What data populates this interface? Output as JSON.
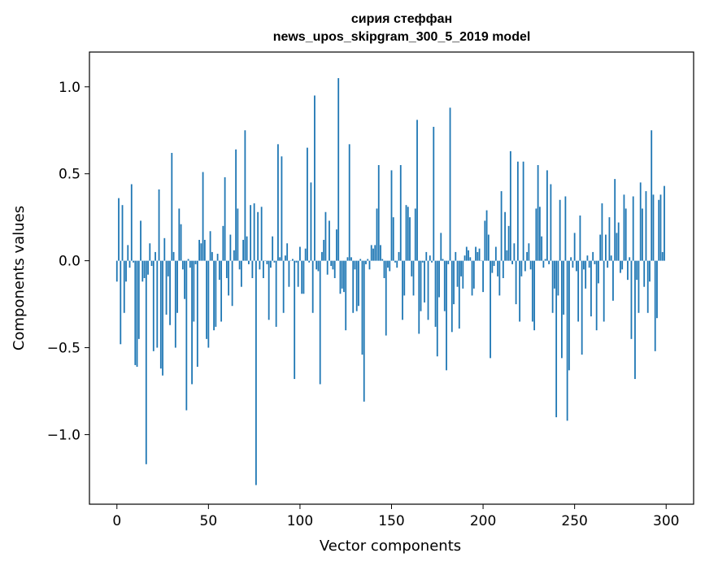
{
  "chart_data": {
    "type": "bar",
    "title": "сирия стеффан",
    "subtitle": "news_upos_skipgram_300_5_2019 model",
    "xlabel": "Vector components",
    "ylabel": "Components values",
    "xlim": [
      -15,
      315
    ],
    "ylim": [
      -1.4,
      1.2
    ],
    "xticks": [
      0,
      50,
      100,
      150,
      200,
      250,
      300
    ],
    "yticks": [
      -1.0,
      -0.5,
      0.0,
      0.5,
      1.0
    ],
    "xtick_labels": [
      "0",
      "50",
      "100",
      "150",
      "200",
      "250",
      "300"
    ],
    "ytick_labels": [
      "−1.0",
      "−0.5",
      "0.0",
      "0.5",
      "1.0"
    ],
    "grid": false,
    "bar_color": "#1f77b4",
    "series": [
      {
        "values": [
          -0.12,
          0.36,
          -0.48,
          0.32,
          -0.3,
          -0.12,
          0.09,
          -0.04,
          0.44,
          -0.01,
          -0.6,
          -0.61,
          -0.45,
          0.23,
          -0.12,
          -0.1,
          -1.17,
          -0.08,
          0.1,
          -0.03,
          -0.52,
          0.05,
          -0.5,
          0.41,
          -0.62,
          -0.66,
          0.13,
          -0.31,
          -0.09,
          -0.37,
          0.62,
          0.05,
          -0.5,
          -0.3,
          0.3,
          0.21,
          -0.05,
          -0.22,
          -0.86,
          0.01,
          -0.04,
          -0.71,
          -0.35,
          -0.02,
          -0.61,
          0.12,
          0.1,
          0.51,
          0.12,
          -0.45,
          -0.5,
          0.17,
          0.05,
          -0.4,
          -0.38,
          0.04,
          -0.11,
          -0.35,
          0.2,
          0.48,
          -0.1,
          -0.2,
          0.15,
          -0.26,
          0.06,
          0.64,
          0.3,
          -0.05,
          -0.15,
          0.12,
          0.75,
          0.14,
          -0.02,
          0.32,
          -0.1,
          0.33,
          -1.29,
          0.28,
          -0.05,
          0.31,
          -0.1,
          0.0,
          -0.02,
          -0.34,
          -0.04,
          0.14,
          -0.01,
          -0.38,
          0.67,
          0.02,
          0.6,
          -0.3,
          0.03,
          0.1,
          -0.15,
          0.0,
          0.01,
          -0.68,
          -0.01,
          -0.15,
          0.08,
          -0.19,
          -0.19,
          0.07,
          0.65,
          -0.01,
          0.45,
          -0.3,
          0.95,
          -0.05,
          -0.06,
          -0.71,
          0.05,
          0.12,
          0.28,
          -0.08,
          0.23,
          -0.03,
          -0.05,
          -0.1,
          0.18,
          1.05,
          -0.19,
          -0.16,
          -0.18,
          -0.4,
          0.02,
          0.67,
          0.02,
          -0.3,
          -0.05,
          -0.29,
          -0.26,
          0.01,
          -0.54,
          -0.81,
          -0.02,
          0.01,
          -0.05,
          0.09,
          0.07,
          0.09,
          0.3,
          0.55,
          0.09,
          0.01,
          -0.1,
          -0.43,
          -0.04,
          -0.06,
          0.52,
          0.25,
          -0.01,
          -0.04,
          0.05,
          0.55,
          -0.34,
          -0.2,
          0.32,
          0.31,
          0.25,
          -0.09,
          -0.2,
          0.3,
          0.81,
          -0.42,
          -0.29,
          -0.01,
          -0.24,
          0.05,
          -0.34,
          0.03,
          -0.01,
          0.77,
          -0.38,
          -0.55,
          -0.21,
          0.16,
          0.01,
          -0.29,
          -0.63,
          -0.02,
          0.88,
          -0.41,
          -0.25,
          0.05,
          -0.15,
          -0.39,
          -0.09,
          -0.16,
          0.03,
          0.08,
          0.06,
          0.02,
          -0.2,
          -0.16,
          0.08,
          0.05,
          0.07,
          0.0,
          -0.18,
          0.23,
          0.29,
          0.15,
          -0.56,
          -0.07,
          -0.03,
          0.08,
          -0.09,
          -0.2,
          0.4,
          -0.1,
          0.28,
          0.06,
          0.2,
          0.63,
          -0.02,
          0.1,
          -0.25,
          0.57,
          -0.35,
          -0.09,
          0.57,
          -0.06,
          0.05,
          0.1,
          -0.05,
          -0.35,
          -0.4,
          0.3,
          0.55,
          0.31,
          0.14,
          -0.04,
          0.01,
          0.52,
          -0.02,
          0.44,
          -0.3,
          -0.16,
          -0.9,
          -0.2,
          0.35,
          -0.56,
          -0.31,
          0.37,
          -0.92,
          -0.63,
          0.02,
          -0.04,
          0.16,
          -0.06,
          -0.35,
          0.26,
          -0.54,
          -0.05,
          -0.16,
          0.03,
          -0.04,
          -0.32,
          0.05,
          -0.02,
          -0.4,
          -0.13,
          0.15,
          0.33,
          -0.35,
          0.15,
          -0.04,
          0.25,
          0.03,
          -0.23,
          0.47,
          0.16,
          0.22,
          -0.07,
          -0.05,
          0.38,
          0.3,
          -0.11,
          0.02,
          -0.45,
          0.37,
          -0.68,
          -0.11,
          -0.3,
          0.45,
          0.3,
          -0.15,
          0.4,
          -0.3,
          -0.12,
          0.75,
          0.38,
          -0.52,
          -0.33,
          0.35,
          0.38,
          0.05,
          0.43
        ]
      }
    ]
  }
}
